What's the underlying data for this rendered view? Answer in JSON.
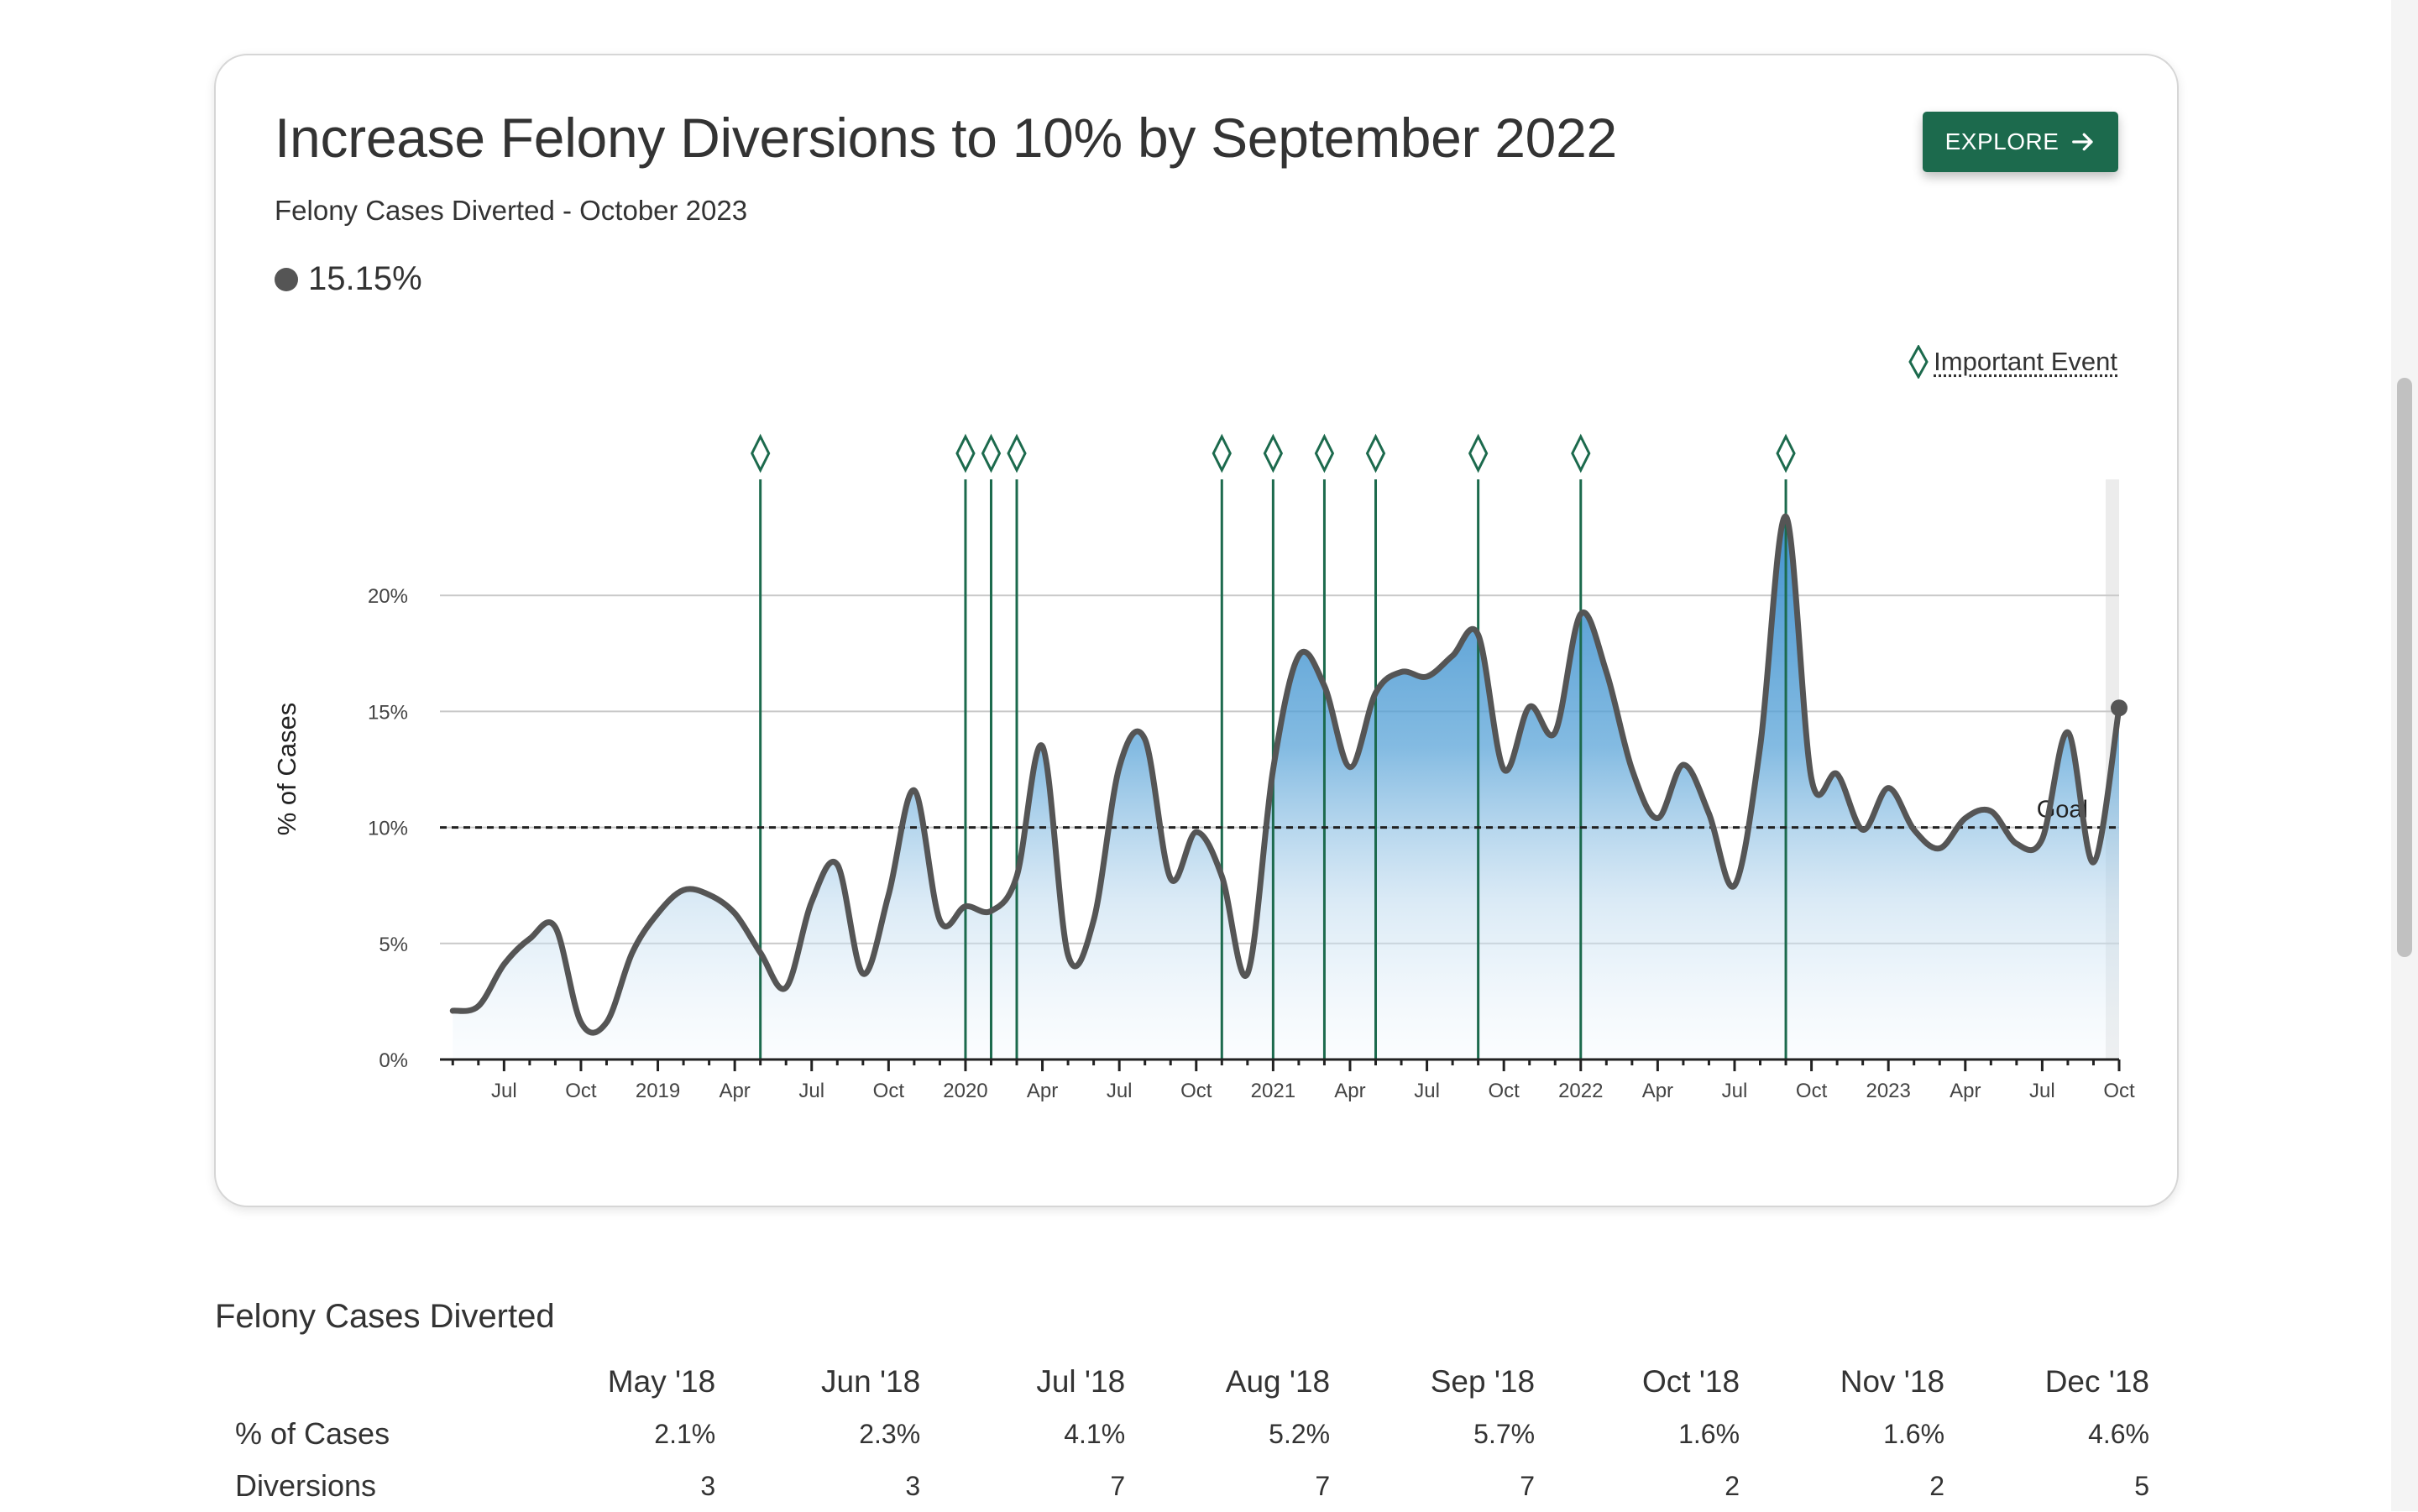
{
  "card": {
    "title": "Increase Felony Diversions to 10% by September 2022",
    "subtitle": "Felony Cases Diverted - October 2023",
    "current_value": "15.15%",
    "explore_label": "EXPLORE",
    "legend_label": "Important Event"
  },
  "colors": {
    "accent": "#1c6a4d",
    "line": "#555555",
    "area_fill": "#4a9fd6",
    "event_marker": "#1c6a4d"
  },
  "chart_data": {
    "type": "area",
    "ylabel": "% of Cases",
    "ylim": [
      0,
      25
    ],
    "y_ticks": [
      "0%",
      "5%",
      "10%",
      "15%",
      "20%"
    ],
    "x_tick_labels": [
      "Jul",
      "Oct",
      "2019",
      "Apr",
      "Jul",
      "Oct",
      "2020",
      "Apr",
      "Jul",
      "Oct",
      "2021",
      "Apr",
      "Jul",
      "Oct",
      "2022",
      "Apr",
      "Jul",
      "Oct",
      "2023",
      "Apr",
      "Jul",
      "Oct"
    ],
    "goal": {
      "label": "Goal",
      "value": 10
    },
    "series": [
      {
        "values": [
          [
            "2018-05",
            2.1
          ],
          [
            "2018-06",
            2.3
          ],
          [
            "2018-07",
            4.1
          ],
          [
            "2018-08",
            5.2
          ],
          [
            "2018-09",
            5.7
          ],
          [
            "2018-10",
            1.6
          ],
          [
            "2018-11",
            1.6
          ],
          [
            "2018-12",
            4.6
          ],
          [
            "2019-01",
            6.3
          ],
          [
            "2019-02",
            7.3
          ],
          [
            "2019-03",
            7.1
          ],
          [
            "2019-04",
            6.3
          ],
          [
            "2019-05",
            4.6
          ],
          [
            "2019-06",
            3.1
          ],
          [
            "2019-07",
            6.8
          ],
          [
            "2019-08",
            8.4
          ],
          [
            "2019-09",
            3.7
          ],
          [
            "2019-10",
            7.1
          ],
          [
            "2019-11",
            11.6
          ],
          [
            "2019-12",
            6.0
          ],
          [
            "2020-01",
            6.6
          ],
          [
            "2020-02",
            6.4
          ],
          [
            "2020-03",
            7.9
          ],
          [
            "2020-04",
            13.5
          ],
          [
            "2020-05",
            4.5
          ],
          [
            "2020-06",
            6.0
          ],
          [
            "2020-07",
            12.6
          ],
          [
            "2020-08",
            13.8
          ],
          [
            "2020-09",
            7.8
          ],
          [
            "2020-10",
            9.8
          ],
          [
            "2020-11",
            7.9
          ],
          [
            "2020-12",
            3.7
          ],
          [
            "2021-01",
            12.5
          ],
          [
            "2021-02",
            17.4
          ],
          [
            "2021-03",
            16.1
          ],
          [
            "2021-04",
            12.6
          ],
          [
            "2021-05",
            15.8
          ],
          [
            "2021-06",
            16.7
          ],
          [
            "2021-07",
            16.5
          ],
          [
            "2021-08",
            17.4
          ],
          [
            "2021-09",
            18.3
          ],
          [
            "2021-10",
            12.5
          ],
          [
            "2021-11",
            15.2
          ],
          [
            "2021-12",
            14.1
          ],
          [
            "2022-01",
            19.2
          ],
          [
            "2022-02",
            16.7
          ],
          [
            "2022-03",
            12.5
          ],
          [
            "2022-04",
            10.4
          ],
          [
            "2022-05",
            12.7
          ],
          [
            "2022-06",
            10.6
          ],
          [
            "2022-07",
            7.5
          ],
          [
            "2022-08",
            13.5
          ],
          [
            "2022-09",
            23.4
          ],
          [
            "2022-10",
            12.1
          ],
          [
            "2022-11",
            12.3
          ],
          [
            "2022-12",
            9.9
          ],
          [
            "2023-01",
            11.7
          ],
          [
            "2023-02",
            9.9
          ],
          [
            "2023-03",
            9.1
          ],
          [
            "2023-04",
            10.4
          ],
          [
            "2023-05",
            10.7
          ],
          [
            "2023-06",
            9.3
          ],
          [
            "2023-07",
            9.5
          ],
          [
            "2023-08",
            14.1
          ],
          [
            "2023-09",
            8.5
          ],
          [
            "2023-10",
            15.15
          ]
        ]
      }
    ],
    "important_events": [
      "2019-05",
      "2020-01",
      "2020-02",
      "2020-03",
      "2020-11",
      "2021-01",
      "2021-03",
      "2021-05",
      "2021-09",
      "2022-01",
      "2022-09"
    ]
  },
  "table": {
    "title": "Felony Cases Diverted",
    "columns": [
      "May '18",
      "Jun '18",
      "Jul '18",
      "Aug '18",
      "Sep '18",
      "Oct '18",
      "Nov '18",
      "Dec '18"
    ],
    "rows": [
      {
        "label": "% of Cases",
        "values": [
          "2.1%",
          "2.3%",
          "4.1%",
          "5.2%",
          "5.7%",
          "1.6%",
          "1.6%",
          "4.6%"
        ]
      },
      {
        "label": "Diversions",
        "values": [
          "3",
          "3",
          "7",
          "7",
          "7",
          "2",
          "2",
          "5"
        ]
      }
    ]
  }
}
